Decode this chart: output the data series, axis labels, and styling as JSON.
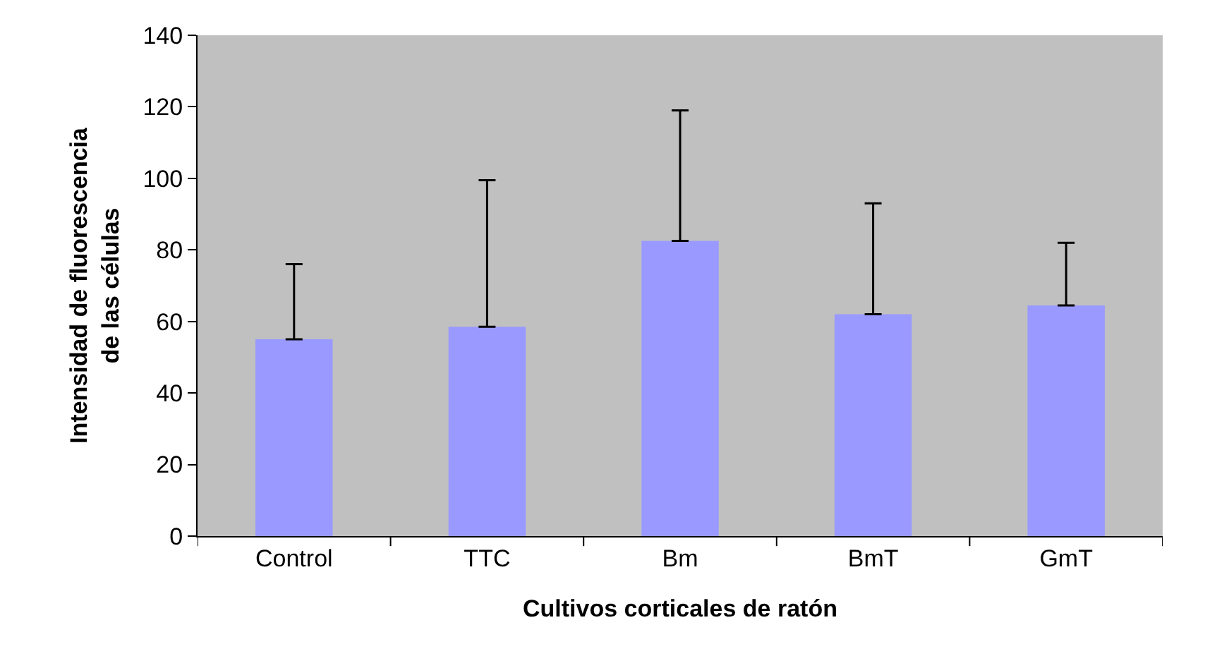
{
  "chart_data": {
    "type": "bar",
    "xlabel": "Cultivos corticales de ratón",
    "ylabel": "Intensidad de fluorescencia de las células",
    "categories": [
      "Control",
      "TTC",
      "Bm",
      "BmT",
      "GmT"
    ],
    "values": [
      55,
      58.5,
      82.5,
      62,
      64.5
    ],
    "errors": [
      [
        55,
        76
      ],
      [
        58.5,
        99.5
      ],
      [
        82.5,
        119
      ],
      [
        62,
        93
      ],
      [
        64.5,
        82
      ]
    ],
    "color": "#9999ff",
    "ylim": [
      0,
      140
    ],
    "yticks": [
      0,
      20,
      40,
      60,
      80,
      100,
      120,
      140
    ],
    "grid": false,
    "legend": false
  }
}
